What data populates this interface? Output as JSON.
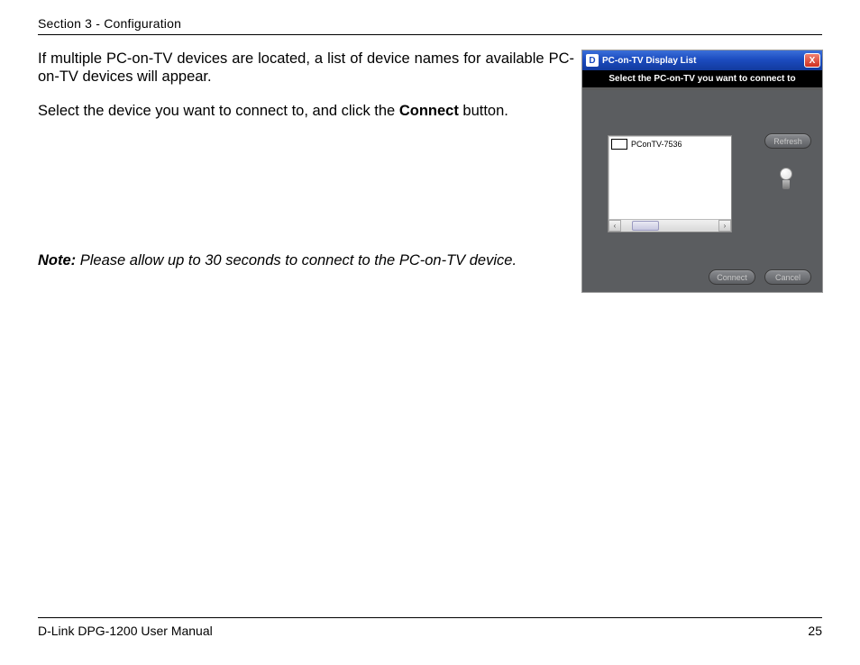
{
  "header": {
    "section": "Section 3 - Configuration"
  },
  "body": {
    "p1": "If multiple PC-on-TV devices are located, a list of device names for available PC-on-TV devices will appear.",
    "p2a": "Select the device you want to connect to, and click the ",
    "p2b": "Connect",
    "p2c": " button.",
    "note_lead": "Note:",
    "note_text": " Please allow up to 30 seconds to connect to the PC-on-TV device."
  },
  "dialog": {
    "title_icon": "D",
    "title": "PC-on-TV Display List",
    "close": "X",
    "subtitle": "Select the PC-on-TV you want to connect to",
    "device": "PConTV-7536",
    "refresh": "Refresh",
    "connect": "Connect",
    "cancel": "Cancel",
    "scroll_left": "‹",
    "scroll_right": "›",
    "colors": {
      "titlebar_start": "#3a6fd9",
      "titlebar_end": "#123a9e",
      "body_bg": "#5b5d60",
      "black_bar": "#000000",
      "button_text": "#c9c9c9"
    }
  },
  "footer": {
    "manual": "D-Link DPG-1200 User Manual",
    "page": "25"
  }
}
